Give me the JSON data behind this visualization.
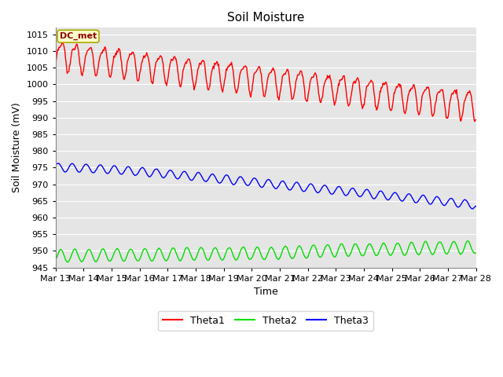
{
  "title": "Soil Moisture",
  "xlabel": "Time",
  "ylabel": "Soil Moisture (mV)",
  "annotation_text": "DC_met",
  "ylim": [
    945,
    1017
  ],
  "yticks": [
    945,
    950,
    955,
    960,
    965,
    970,
    975,
    980,
    985,
    990,
    995,
    1000,
    1005,
    1010,
    1015
  ],
  "bg_color": "#e5e5e5",
  "fig_color": "#ffffff",
  "grid_color": "#ffffff",
  "theta1_color": "#ff0000",
  "theta2_color": "#00dd00",
  "theta3_color": "#0000ff",
  "line_width": 1.0,
  "legend_labels": [
    "Theta1",
    "Theta2",
    "Theta3"
  ],
  "xtick_labels": [
    "Mar 13",
    "Mar 14",
    "Mar 15",
    "Mar 16",
    "Mar 17",
    "Mar 18",
    "Mar 19",
    "Mar 20",
    "Mar 21",
    "Mar 22",
    "Mar 23",
    "Mar 24",
    "Mar 25",
    "Mar 26",
    "Mar 27",
    "Mar 28"
  ],
  "n_days": 15,
  "samples_per_day": 48
}
